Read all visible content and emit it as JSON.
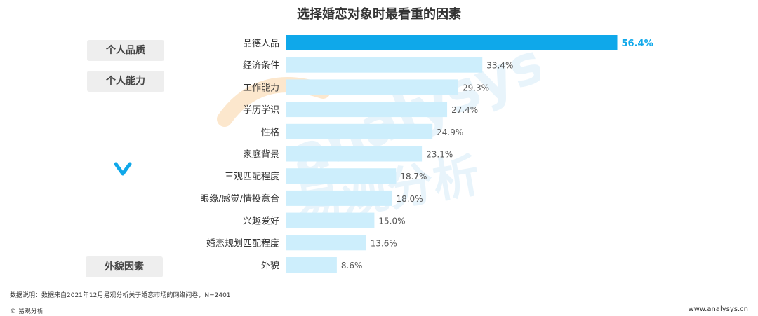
{
  "chart_data": {
    "type": "bar",
    "orientation": "horizontal",
    "title": "选择婚恋对象时最看重的因素",
    "categories": [
      "品德人品",
      "经济条件",
      "工作能力",
      "学历学识",
      "性格",
      "家庭背景",
      "三观匹配程度",
      "眼缘/感觉/情投意合",
      "兴趣爱好",
      "婚恋规划匹配程度",
      "外貌"
    ],
    "values": [
      56.4,
      33.4,
      29.3,
      27.4,
      24.9,
      23.1,
      18.7,
      18.0,
      15.0,
      13.6,
      8.6
    ],
    "value_labels": [
      "56.4%",
      "33.4%",
      "29.3%",
      "27.4%",
      "24.9%",
      "23.1%",
      "18.7%",
      "18.0%",
      "15.0%",
      "13.6%",
      "8.6%"
    ],
    "highlight_index": 0,
    "colors": {
      "highlight": "#0fa8ea",
      "normal": "#cdeefc",
      "highlight_label": "#0fa8ea",
      "normal_label": "#555555"
    },
    "grid": false,
    "xlabel": "",
    "ylabel": ""
  },
  "groups": {
    "personal_quality": "个人品质",
    "personal_ability": "个人能力",
    "appearance": "外貌因素",
    "chevron_icon": "chevron-down-icon"
  },
  "watermark": {
    "latin": "analysys",
    "cjk": "易观分析"
  },
  "footer": {
    "note": "数据说明：数据来自2021年12月易观分析关于婚恋市场的网络问卷，N=2401",
    "brand": "© 易观分析",
    "website": "www.analysys.cn"
  }
}
